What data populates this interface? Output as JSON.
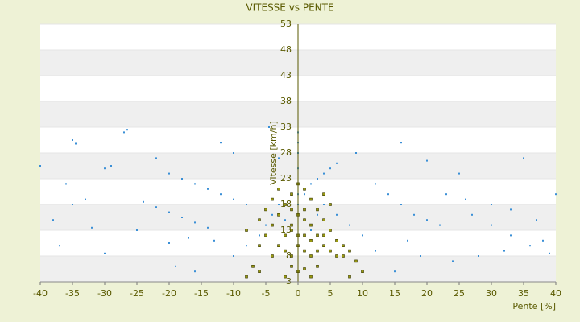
{
  "chart_data": {
    "type": "scatter",
    "title": "VITESSE vs PENTE",
    "x_label": "Pente [%]",
    "y_label": "Vitesse [km/h]",
    "xlim": [
      -40,
      40
    ],
    "xticks": [
      -40,
      -35,
      -30,
      -25,
      -20,
      -15,
      -10,
      -5,
      0,
      5,
      10,
      15,
      20,
      25,
      30,
      35,
      40
    ],
    "ylim": [
      3,
      53
    ],
    "yticks": [
      3,
      8,
      13,
      18,
      23,
      28,
      33,
      38,
      43,
      48,
      53
    ],
    "grid": true,
    "band_colors": [
      "#ffffff",
      "#efefef"
    ],
    "series": [
      {
        "color": "#3a8fd6",
        "x": [
          -35,
          -34.5,
          -27,
          -26.5,
          -29,
          -30,
          -22,
          -20,
          -18,
          -16,
          -14,
          -12,
          -10,
          -24,
          -22,
          -20,
          -18,
          -16,
          -14,
          -33,
          -35,
          -38,
          -36,
          -40,
          -32,
          -25,
          -20,
          -17,
          -13,
          -10,
          -8,
          -6,
          -5,
          -4,
          -3,
          -8,
          -10,
          -12,
          -4.5,
          -19,
          -16,
          -30,
          -37,
          -3,
          0,
          0,
          0,
          0,
          0,
          0,
          0,
          1,
          2,
          3,
          4,
          5,
          6,
          9,
          12,
          14,
          16,
          18,
          20,
          22,
          16,
          20,
          25,
          27,
          30,
          33,
          36,
          35,
          40,
          38,
          28,
          24,
          19,
          15,
          10,
          8,
          6,
          4,
          23,
          26,
          30,
          33,
          37,
          12,
          17,
          32,
          39,
          2,
          3,
          -2
        ],
        "y": [
          30.5,
          29.8,
          32,
          32.5,
          25.5,
          25,
          27,
          24,
          23,
          22,
          21,
          20,
          19,
          18.5,
          17.5,
          16.5,
          15.5,
          14.5,
          13.5,
          19,
          18,
          15,
          22,
          25.5,
          13.5,
          13,
          10.5,
          11.5,
          11,
          8,
          10,
          12,
          14,
          16,
          18,
          18,
          28,
          30,
          33,
          6,
          5,
          8.5,
          10,
          27,
          30,
          32,
          28,
          25,
          22,
          20,
          18,
          20,
          22,
          23,
          24,
          25,
          26,
          28,
          22,
          20,
          18,
          16,
          15,
          14,
          30,
          26.5,
          24,
          16,
          14,
          12,
          10,
          27,
          20,
          11,
          8,
          7,
          8,
          5,
          12,
          14,
          16,
          18,
          20,
          19,
          18,
          17,
          15,
          9,
          11,
          9,
          8.5,
          13,
          16,
          15
        ]
      },
      {
        "color": "#9a9a10",
        "x": [
          -6,
          -5,
          -4,
          -3,
          -2,
          -1,
          0,
          1,
          2,
          3,
          4,
          5,
          6,
          7,
          8,
          -7,
          -6,
          -4,
          -3,
          -2,
          -1,
          0,
          1,
          2,
          3,
          4,
          5,
          -1,
          0,
          1,
          2,
          0,
          1,
          -1,
          3,
          -2,
          2,
          -8,
          8,
          10,
          6,
          -5,
          -4,
          4,
          5,
          -3,
          -1,
          1,
          0,
          -2,
          4,
          7,
          9,
          -8,
          -6,
          3,
          -1,
          1,
          2
        ],
        "y": [
          10,
          12,
          14,
          16,
          18,
          20,
          22,
          21,
          19,
          17,
          15,
          13,
          11,
          10,
          9,
          6,
          5,
          8,
          10,
          12,
          14,
          16,
          15,
          14,
          12,
          10,
          9,
          8,
          10,
          9,
          8,
          5,
          5.5,
          6,
          6,
          4,
          4,
          4,
          4,
          5,
          8,
          17,
          19,
          20,
          18,
          21,
          13,
          12,
          12,
          9,
          12,
          8,
          7,
          13,
          15,
          9,
          17,
          17,
          11
        ]
      }
    ]
  }
}
